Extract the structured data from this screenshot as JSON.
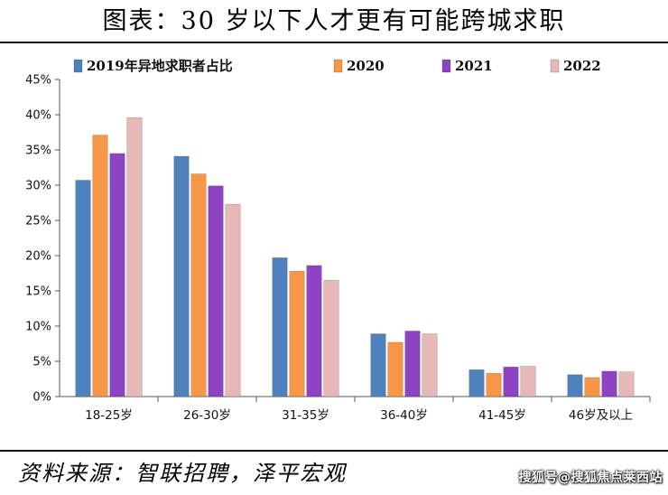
{
  "header": {
    "title": "图表：30 岁以下人才更有可能跨城求职"
  },
  "footer": {
    "source": "资料来源：智联招聘，泽平宏观",
    "watermark": "搜狐号@搜狐焦点莱西站"
  },
  "chart_data": {
    "type": "bar",
    "title": "图表：30 岁以下人才更有可能跨城求职",
    "categories": [
      "18-25岁",
      "26-30岁",
      "31-35岁",
      "36-40岁",
      "41-45岁",
      "46岁及以上"
    ],
    "series": [
      {
        "name": "2019年异地求职者占比",
        "color": "#4f81bd",
        "values": [
          30.7,
          34.1,
          19.7,
          8.9,
          3.8,
          3.1
        ]
      },
      {
        "name": "2020",
        "color": "#f79646",
        "values": [
          37.1,
          31.6,
          17.8,
          7.7,
          3.3,
          2.7
        ]
      },
      {
        "name": "2021",
        "color": "#8e44c2",
        "values": [
          34.5,
          29.9,
          18.6,
          9.3,
          4.2,
          3.6
        ]
      },
      {
        "name": "2022",
        "color": "#e6b8b7",
        "values": [
          39.6,
          27.3,
          16.5,
          8.9,
          4.3,
          3.5
        ]
      }
    ],
    "yticks": [
      "0%",
      "5%",
      "10%",
      "15%",
      "20%",
      "25%",
      "30%",
      "35%",
      "40%",
      "45%"
    ],
    "ylim": [
      0,
      45
    ],
    "ylabel": "",
    "xlabel": "",
    "legend_position": "top",
    "grid": false
  }
}
